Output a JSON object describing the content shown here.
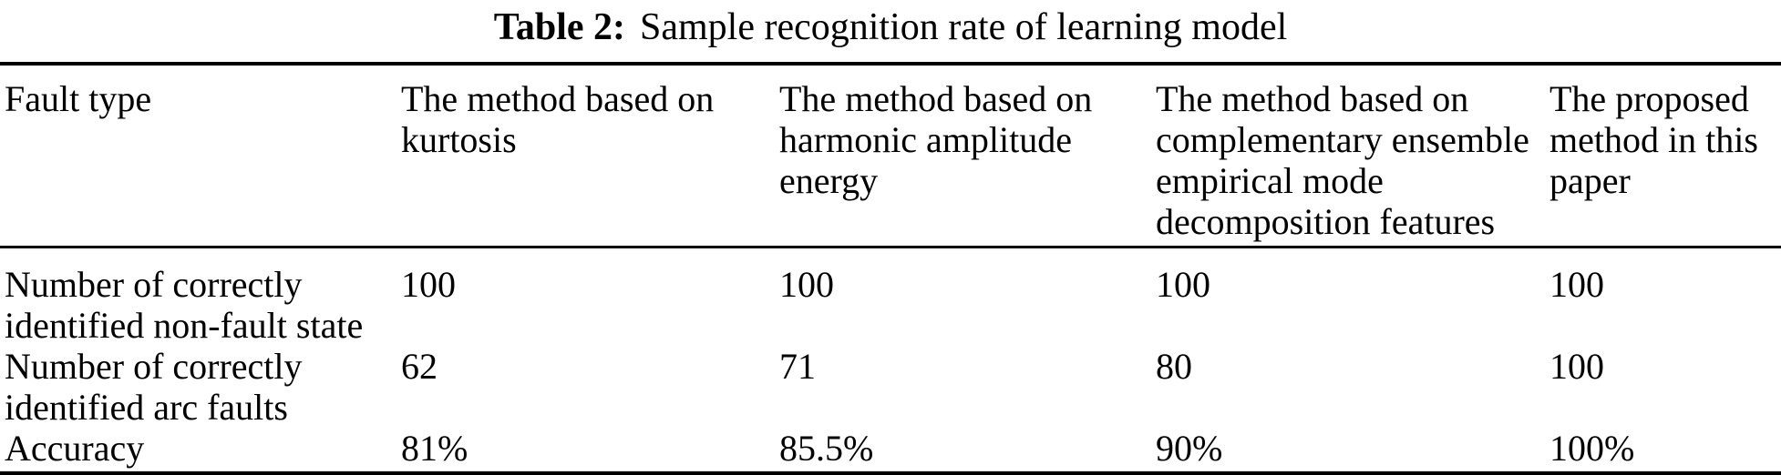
{
  "caption": {
    "label": "Table 2:",
    "title": "Sample recognition rate of learning model"
  },
  "table": {
    "columns": [
      "Fault type",
      "The method based on\nkurtosis",
      "The method based on\nharmonic amplitude\nenergy",
      "The method based on\ncomplementary ensemble\nempirical mode\ndecomposition features",
      "The proposed\nmethod in this\npaper"
    ],
    "rows": [
      {
        "label": "Number of correctly\nidentified non-fault state",
        "values": [
          "100",
          "100",
          "100",
          "100"
        ]
      },
      {
        "label": "Number of correctly\nidentified arc faults",
        "values": [
          "62",
          "71",
          "80",
          "100"
        ]
      },
      {
        "label": "Accuracy",
        "values": [
          "81%",
          "85.5%",
          "90%",
          "100%"
        ]
      }
    ]
  },
  "colors": {
    "background": "#ffffff",
    "text": "#000000",
    "rule": "#000000"
  }
}
